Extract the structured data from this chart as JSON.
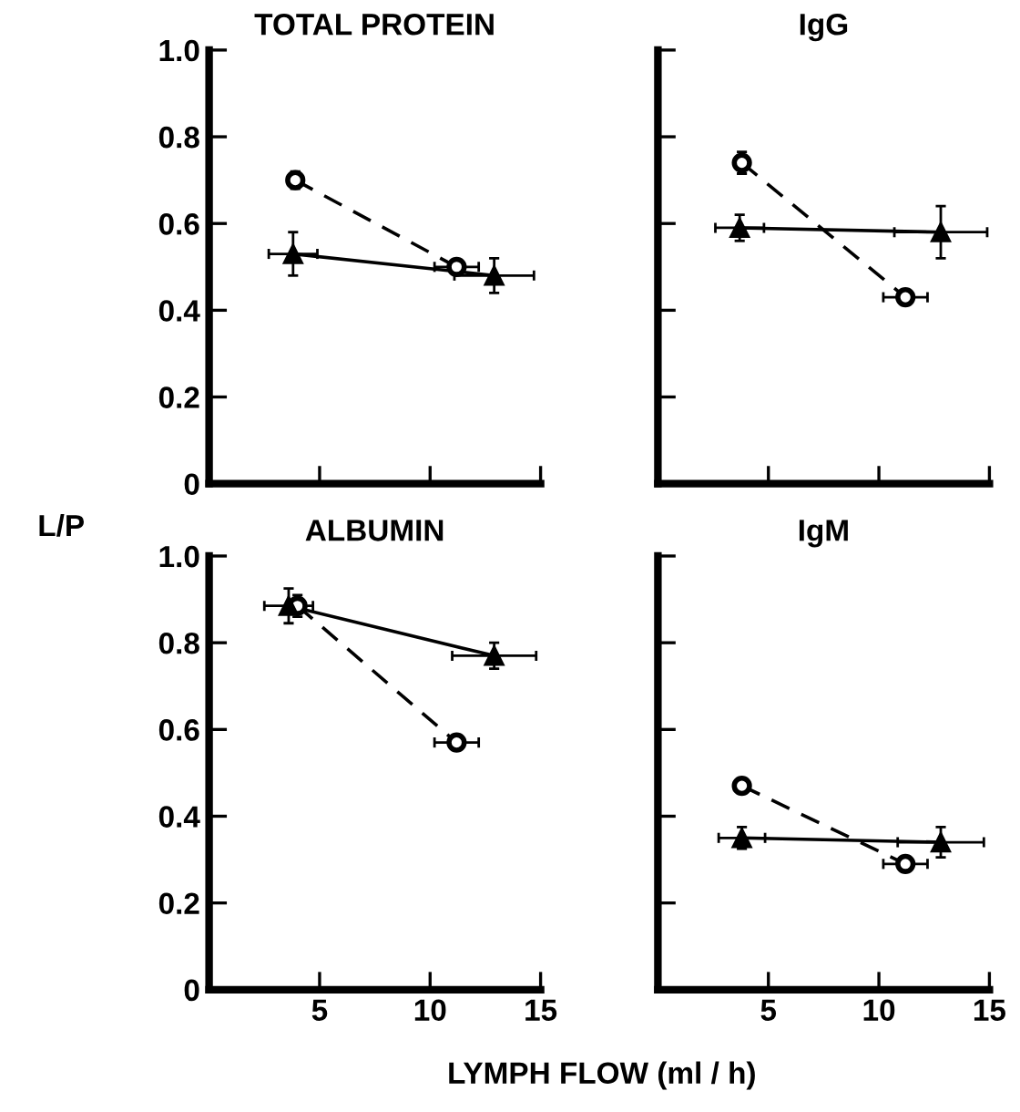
{
  "chart_data": [
    {
      "type": "line",
      "title": "TOTAL PROTEIN",
      "ylabel": "L/P",
      "xlim": [
        0,
        15
      ],
      "xticks": [
        5,
        10,
        15
      ],
      "ylim": [
        0,
        1.0
      ],
      "yticks": [
        0,
        0.2,
        0.4,
        0.6,
        0.8,
        {
          "value": 1,
          "label": "1.0"
        }
      ],
      "tick_labels": "y",
      "grid": false,
      "legend": false,
      "series": [
        {
          "color": "#000000",
          "marker": "circle",
          "line_style": "dashed",
          "x": [
            3.9,
            11.2
          ],
          "values": [
            0.7,
            0.5
          ],
          "errors": [
            0.02,
            0.015
          ],
          "xerrors": [
            null,
            1.0
          ]
        },
        {
          "color": "#000000",
          "marker": "triangle",
          "line_style": "solid",
          "x": [
            3.8,
            12.9
          ],
          "values": [
            0.53,
            0.48
          ],
          "errors": [
            0.05,
            0.04
          ],
          "xerrors": [
            1.1,
            1.8
          ]
        }
      ]
    },
    {
      "type": "line",
      "title": "IgG",
      "xlim": [
        0,
        15
      ],
      "xticks": [
        5,
        10,
        15
      ],
      "ylim": [
        0,
        1.0
      ],
      "yticks": [
        0,
        0.2,
        0.4,
        0.6,
        0.8,
        1.0
      ],
      "tick_labels": false,
      "grid": false,
      "legend": false,
      "series": [
        {
          "color": "#000000",
          "marker": "circle",
          "line_style": "dashed",
          "x": [
            3.8,
            11.2
          ],
          "values": [
            0.74,
            0.43
          ],
          "errors": [
            0.025,
            0.015
          ],
          "xerrors": [
            null,
            1.0
          ]
        },
        {
          "color": "#000000",
          "marker": "triangle",
          "line_style": "solid",
          "x": [
            3.7,
            12.8
          ],
          "values": [
            0.59,
            0.58
          ],
          "errors": [
            0.03,
            0.06
          ],
          "xerrors": [
            1.1,
            2.1
          ]
        }
      ]
    },
    {
      "type": "line",
      "title": "ALBUMIN",
      "xlabel": "LYMPH FLOW (ml / h)",
      "xlim": [
        0,
        15
      ],
      "xticks": [
        5,
        10,
        15
      ],
      "ylim": [
        0,
        1.0
      ],
      "yticks": [
        0,
        0.2,
        0.4,
        0.6,
        0.8,
        {
          "value": 1,
          "label": "1.0"
        }
      ],
      "grid": false,
      "legend": false,
      "series": [
        {
          "color": "#000000",
          "marker": "circle",
          "line_style": "dashed",
          "x": [
            4.0,
            11.2
          ],
          "values": [
            0.885,
            0.57
          ],
          "errors": [
            0.025,
            0.015
          ],
          "xerrors": [
            null,
            1.0
          ]
        },
        {
          "color": "#000000",
          "marker": "triangle",
          "line_style": "solid",
          "x": [
            3.6,
            12.9
          ],
          "values": [
            0.885,
            0.77
          ],
          "errors": [
            0.04,
            0.03
          ],
          "xerrors": [
            1.1,
            1.9
          ]
        }
      ]
    },
    {
      "type": "line",
      "title": "IgM",
      "xlim": [
        0,
        15
      ],
      "xticks": [
        5,
        10,
        15
      ],
      "ylim": [
        0,
        1.0
      ],
      "yticks": [
        0,
        0.2,
        0.4,
        0.6,
        0.8,
        1.0
      ],
      "tick_labels": "x",
      "grid": false,
      "legend": false,
      "series": [
        {
          "color": "#000000",
          "marker": "circle",
          "line_style": "dashed",
          "x": [
            3.8,
            11.2
          ],
          "values": [
            0.47,
            0.29
          ],
          "errors": [
            0.015,
            0.015
          ],
          "xerrors": [
            null,
            1.0
          ]
        },
        {
          "color": "#000000",
          "marker": "triangle",
          "line_style": "solid",
          "x": [
            3.8,
            12.8
          ],
          "values": [
            0.35,
            0.34
          ],
          "errors": [
            0.025,
            0.035
          ],
          "xerrors": [
            1.05,
            1.95
          ]
        }
      ]
    }
  ]
}
